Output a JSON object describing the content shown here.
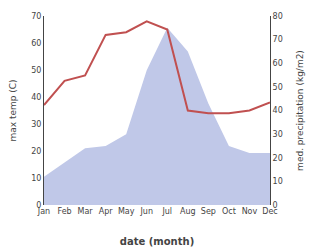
{
  "chart_data": {
    "type": "line",
    "categories": [
      "Jan",
      "Feb",
      "Mar",
      "Apr",
      "May",
      "Jun",
      "Jul",
      "Aug",
      "Sep",
      "Oct",
      "Nov",
      "Dec"
    ],
    "series": [
      {
        "type": "area",
        "axis": "y2",
        "color": "#c0c8e8",
        "values": [
          12,
          18,
          24,
          25,
          30,
          57,
          75,
          65,
          43,
          25,
          22,
          22
        ]
      },
      {
        "type": "line",
        "color": "#c05050",
        "values": [
          37,
          46,
          48,
          63,
          64,
          68,
          65,
          35,
          34,
          34,
          35,
          38
        ]
      }
    ],
    "xlabel": "date (month)",
    "ylabel": "max temp (C)",
    "y2label": "med. precipitation (kg/m2)",
    "ylim": [
      0,
      70
    ],
    "yticks": [
      0,
      10,
      20,
      30,
      40,
      50,
      60,
      70
    ],
    "y2lim": [
      0,
      80
    ],
    "y2ticks": [
      0,
      10,
      20,
      30,
      40,
      50,
      60,
      70,
      80
    ],
    "grid": false
  }
}
